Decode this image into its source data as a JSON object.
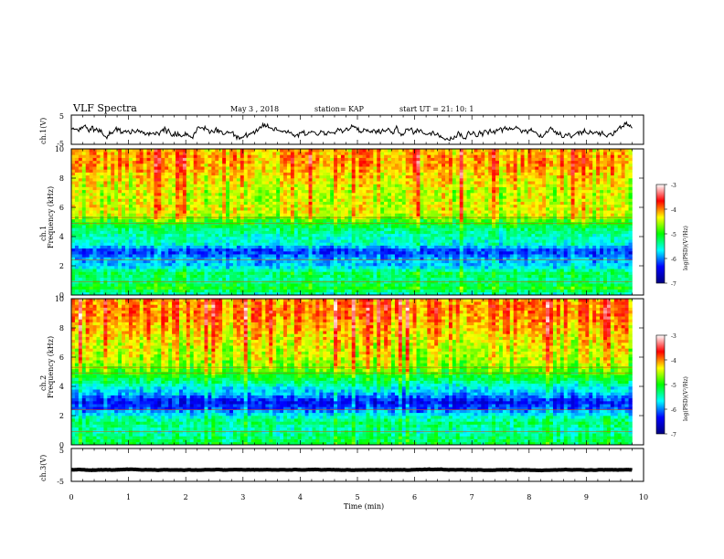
{
  "header": {
    "title": "VLF Spectra",
    "date": "May 3  , 2018",
    "station": "station= KAP",
    "start": "start  UT =   21: 10: 1"
  },
  "chart_data": {
    "type": "heatmap",
    "xlabel": "Time  (min)",
    "xlim": [
      0,
      10
    ],
    "x_ticks": [
      "0",
      "1",
      "2",
      "3",
      "4",
      "5",
      "6",
      "7",
      "8",
      "9",
      "10"
    ],
    "panels": [
      {
        "id": "ch1v",
        "type": "line",
        "ylabel": "ch.1(V)",
        "ylim": [
          -5,
          5
        ],
        "y_ticks": [
          "5",
          "-5"
        ]
      },
      {
        "id": "ch1spec",
        "type": "heatmap",
        "ylabel": "Frequency  (kHz)",
        "ylabel2": "ch.1",
        "ylim": [
          0,
          10
        ],
        "y_ticks": [
          "0",
          "2",
          "4",
          "6",
          "8",
          "10"
        ],
        "colorbar": true
      },
      {
        "id": "ch2spec",
        "type": "heatmap",
        "ylabel": "Frequency  (kHz)",
        "ylabel2": "ch.2",
        "ylim": [
          0,
          10
        ],
        "y_ticks": [
          "0",
          "2",
          "4",
          "6",
          "8",
          "10"
        ],
        "colorbar": true
      },
      {
        "id": "ch3v",
        "type": "line",
        "ylabel": "ch.3(V)",
        "ylim": [
          -5,
          5
        ],
        "y_ticks": [
          "5",
          "-5"
        ]
      }
    ],
    "colorbar": {
      "label": "log(PSD)(V²/Hz)",
      "range": [
        -7,
        -3
      ],
      "ticks": [
        "-3",
        "-4",
        "-5",
        "-6",
        "-7"
      ],
      "colors": [
        "#00007f",
        "#0000ff",
        "#00ffff",
        "#00ff00",
        "#ffff00",
        "#ff0000",
        "#ffffff"
      ]
    },
    "ch1_spectrum_levels": [
      {
        "f": 0.0,
        "v": -5.6
      },
      {
        "f": 0.5,
        "v": -5.0
      },
      {
        "f": 1.0,
        "v": -5.4
      },
      {
        "f": 1.5,
        "v": -5.2
      },
      {
        "f": 2.0,
        "v": -5.8
      },
      {
        "f": 2.5,
        "v": -5.9
      },
      {
        "f": 3.0,
        "v": -6.3
      },
      {
        "f": 3.5,
        "v": -5.6
      },
      {
        "f": 4.0,
        "v": -5.5
      },
      {
        "f": 4.5,
        "v": -5.3
      },
      {
        "f": 5.0,
        "v": -5.0
      },
      {
        "f": 5.5,
        "v": -4.5
      },
      {
        "f": 6.0,
        "v": -4.4
      },
      {
        "f": 6.5,
        "v": -4.5
      },
      {
        "f": 7.0,
        "v": -4.5
      },
      {
        "f": 7.5,
        "v": -4.4
      },
      {
        "f": 8.0,
        "v": -4.3
      },
      {
        "f": 8.5,
        "v": -4.2
      },
      {
        "f": 9.0,
        "v": -4.1
      },
      {
        "f": 9.5,
        "v": -4.1
      },
      {
        "f": 10.0,
        "v": -4.2
      }
    ],
    "ch2_spectrum_levels": [
      {
        "f": 0.0,
        "v": -5.2
      },
      {
        "f": 0.5,
        "v": -5.3
      },
      {
        "f": 1.0,
        "v": -5.5
      },
      {
        "f": 1.5,
        "v": -5.3
      },
      {
        "f": 2.0,
        "v": -5.6
      },
      {
        "f": 2.5,
        "v": -6.2
      },
      {
        "f": 3.0,
        "v": -6.4
      },
      {
        "f": 3.5,
        "v": -5.9
      },
      {
        "f": 4.0,
        "v": -5.6
      },
      {
        "f": 4.5,
        "v": -5.2
      },
      {
        "f": 5.0,
        "v": -4.9
      },
      {
        "f": 5.5,
        "v": -4.7
      },
      {
        "f": 6.0,
        "v": -4.5
      },
      {
        "f": 6.5,
        "v": -4.5
      },
      {
        "f": 7.0,
        "v": -4.4
      },
      {
        "f": 7.5,
        "v": -4.3
      },
      {
        "f": 8.0,
        "v": -4.2
      },
      {
        "f": 8.5,
        "v": -4.1
      },
      {
        "f": 9.0,
        "v": -4.0
      },
      {
        "f": 9.5,
        "v": -4.0
      },
      {
        "f": 10.0,
        "v": -4.1
      }
    ],
    "ch1_time_series_approx": {
      "mean": -0.5,
      "amplitude": 1.5
    },
    "ch3_time_series_approx": {
      "mean": -1.5,
      "amplitude": 0.1
    },
    "spectrum_end_min": 9.8
  }
}
